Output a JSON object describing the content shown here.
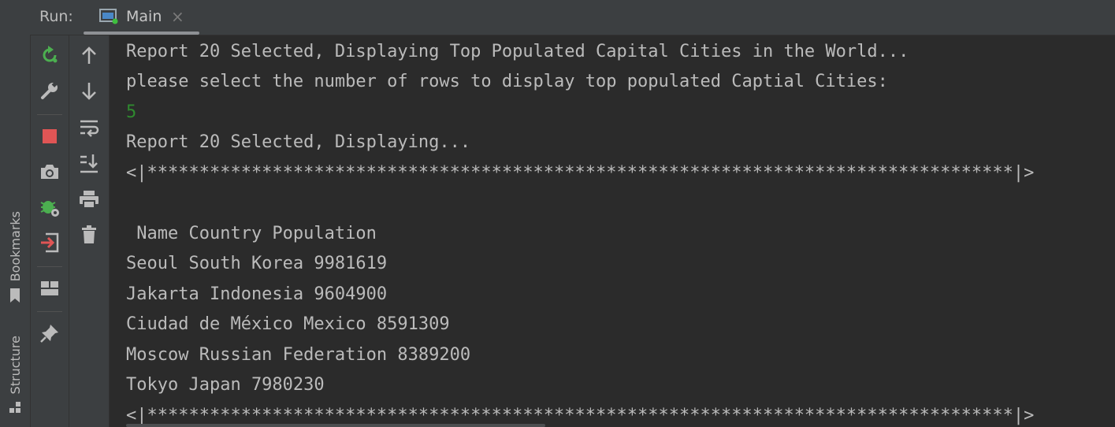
{
  "sidebar": {
    "bookmarks_label": "Bookmarks",
    "structure_label": "Structure"
  },
  "header": {
    "run_label": "Run:",
    "tab": {
      "label": "Main",
      "close": "×"
    }
  },
  "icons": {
    "rerun": "rerun-icon",
    "wrench": "wrench-icon",
    "stop": "stop-icon",
    "camera": "camera-icon",
    "debug": "debug-settings-icon",
    "exit": "exit-icon",
    "layout": "layout-icon",
    "pin": "pin-icon",
    "up": "arrow-up-icon",
    "down": "arrow-down-icon",
    "wrap": "soft-wrap-icon",
    "scroll_end": "scroll-to-end-icon",
    "print": "print-icon",
    "trash": "trash-icon"
  },
  "colors": {
    "rerun": "#4caf50",
    "stop": "#e05555",
    "input": "#2f8a2f"
  },
  "console": {
    "lines": [
      "Report 20 Selected, Displaying Top Populated Capital Cities in the World...",
      "please select the number of rows to display top populated Captial Cities:",
      "5",
      "Report 20 Selected, Displaying...",
      "<|***********************************************************************************|>",
      "",
      " Name Country Population",
      "Seoul South Korea 9981619",
      "Jakarta Indonesia 9604900",
      "Ciudad de México Mexico 8591309",
      "Moscow Russian Federation 8389200",
      "Tokyo Japan 7980230",
      "<|***********************************************************************************|>"
    ]
  }
}
